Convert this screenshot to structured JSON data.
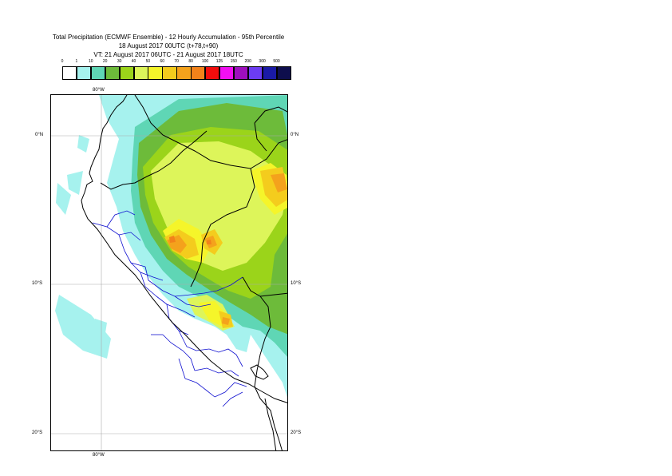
{
  "title": {
    "line1": "Total Precipitation (ECMWF Ensemble) - 12 Hourly Accumulation - 95th Percentile",
    "line2": "18 August 2017 00UTC (t+78,t+90)",
    "line3": "VT: 21 August 2017 06UTC - 21 August 2017 18UTC"
  },
  "legend": {
    "ticks": [
      "0",
      "1",
      "10",
      "20",
      "30",
      "40",
      "50",
      "60",
      "70",
      "80",
      "100",
      "125",
      "150",
      "200",
      "300",
      "500"
    ],
    "colors": [
      "#ffffff",
      "#a6f2ee",
      "#5fd6b5",
      "#6dbb3a",
      "#9bd41a",
      "#ddf55a",
      "#f5f52a",
      "#f4cc1d",
      "#f4a21c",
      "#f2821a",
      "#f20d0d",
      "#f20ff2",
      "#9e0fbd",
      "#6c3cf2",
      "#1a1aa6",
      "#0e0e4d"
    ]
  },
  "axes": {
    "lon_top": "80°W",
    "lon_bottom": "80°W",
    "lat_left": [
      "0°N",
      "10°S",
      "20°S"
    ],
    "lat_right": [
      "0°N",
      "10°S",
      "20°S"
    ]
  },
  "colors": {
    "coast": "#000000",
    "admin": "#1010d0",
    "grid": "#aaaaaa"
  }
}
